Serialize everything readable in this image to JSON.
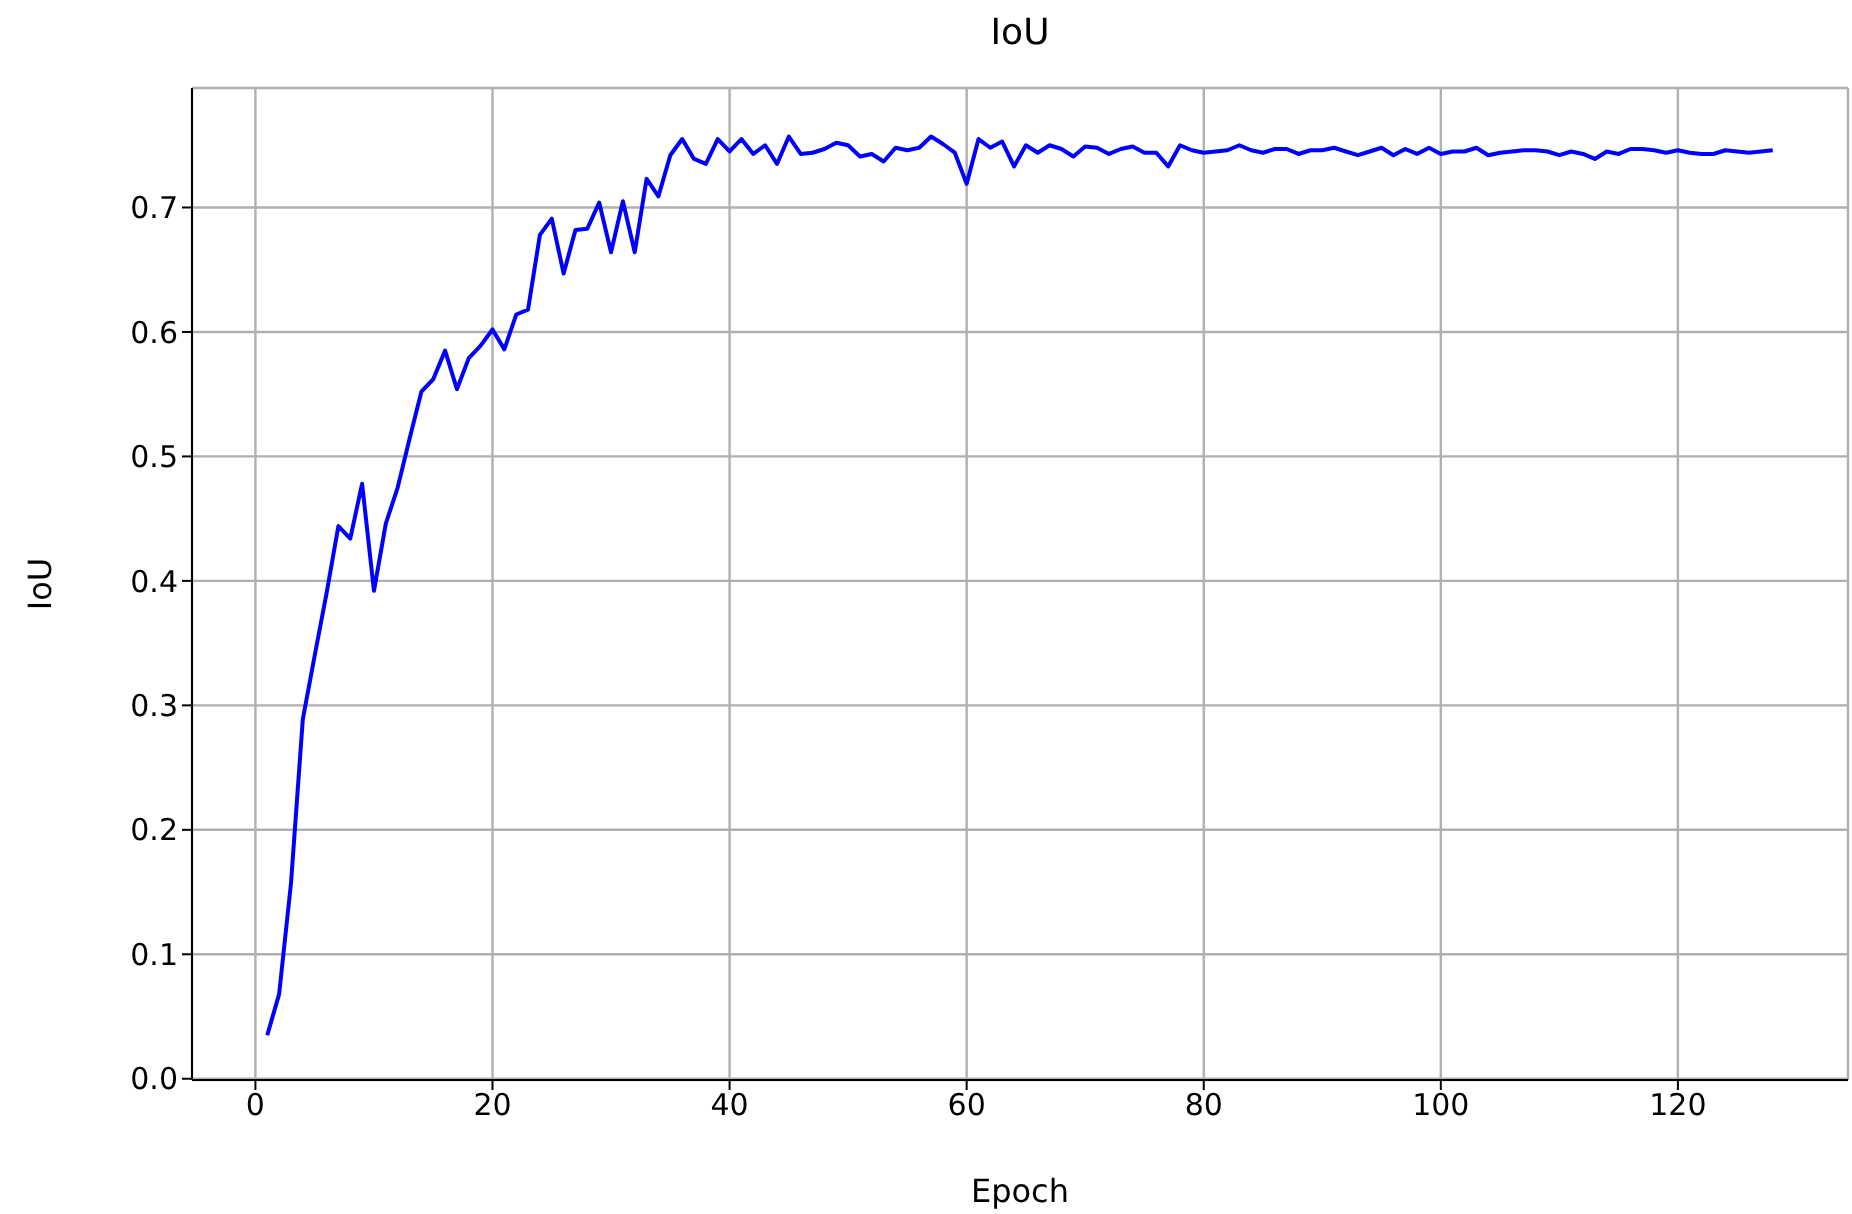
{
  "chart_data": {
    "type": "line",
    "title": "IoU",
    "xlabel": "Epoch",
    "ylabel": "IoU",
    "x": [
      1,
      2,
      3,
      4,
      5,
      6,
      7,
      8,
      9,
      10,
      11,
      12,
      13,
      14,
      15,
      16,
      17,
      18,
      19,
      20,
      21,
      22,
      23,
      24,
      25,
      26,
      27,
      28,
      29,
      30,
      31,
      32,
      33,
      34,
      35,
      36,
      37,
      38,
      39,
      40,
      41,
      42,
      43,
      44,
      45,
      46,
      47,
      48,
      49,
      50,
      51,
      52,
      53,
      54,
      55,
      56,
      57,
      58,
      59,
      60,
      61,
      62,
      63,
      64,
      65,
      66,
      67,
      68,
      69,
      70,
      71,
      72,
      73,
      74,
      75,
      76,
      77,
      78,
      79,
      80,
      81,
      82,
      83,
      84,
      85,
      86,
      87,
      88,
      89,
      90,
      91,
      92,
      93,
      94,
      95,
      96,
      97,
      98,
      99,
      100,
      101,
      102,
      103,
      104,
      105,
      106,
      107,
      108,
      109,
      110,
      111,
      112,
      113,
      114,
      115,
      116,
      117,
      118,
      119,
      120,
      121,
      122,
      123,
      124,
      125,
      126,
      127,
      128
    ],
    "series": [
      {
        "color": "#0000ff",
        "values": [
          0.035,
          0.068,
          0.157,
          0.289,
          0.34,
          0.39,
          0.444,
          0.434,
          0.478,
          0.392,
          0.446,
          0.475,
          0.514,
          0.552,
          0.562,
          0.585,
          0.554,
          0.579,
          0.589,
          0.602,
          0.586,
          0.614,
          0.618,
          0.678,
          0.691,
          0.647,
          0.682,
          0.683,
          0.704,
          0.664,
          0.705,
          0.664,
          0.723,
          0.709,
          0.742,
          0.755,
          0.739,
          0.735,
          0.755,
          0.745,
          0.755,
          0.743,
          0.75,
          0.735,
          0.757,
          0.743,
          0.744,
          0.747,
          0.752,
          0.75,
          0.741,
          0.743,
          0.737,
          0.748,
          0.746,
          0.748,
          0.757,
          0.751,
          0.744,
          0.719,
          0.755,
          0.748,
          0.753,
          0.733,
          0.75,
          0.744,
          0.75,
          0.747,
          0.741,
          0.749,
          0.748,
          0.743,
          0.747,
          0.749,
          0.744,
          0.744,
          0.733,
          0.75,
          0.746,
          0.744,
          0.745,
          0.746,
          0.75,
          0.746,
          0.744,
          0.747,
          0.747,
          0.743,
          0.746,
          0.746,
          0.748,
          0.745,
          0.742,
          0.745,
          0.748,
          0.742,
          0.747,
          0.743,
          0.748,
          0.743,
          0.745,
          0.745,
          0.748,
          0.742,
          0.744,
          0.745,
          0.746,
          0.746,
          0.745,
          0.742,
          0.745,
          0.743,
          0.739,
          0.745,
          0.743,
          0.747,
          0.747,
          0.746,
          0.744,
          0.746,
          0.744,
          0.743,
          0.743,
          0.746,
          0.745,
          0.744,
          0.745,
          0.746
        ]
      }
    ],
    "xlim": [
      -5.35,
      134.35
    ],
    "ylim": [
      -0.001,
      0.796
    ],
    "xticks": [
      0,
      20,
      40,
      60,
      80,
      100,
      120
    ],
    "yticks": [
      {
        "value": 0,
        "label": "0.0"
      },
      0.1,
      0.2,
      0.3,
      0.4,
      0.5,
      0.6,
      0.7
    ],
    "grid": true,
    "marker": "none",
    "line_style": "solid"
  }
}
